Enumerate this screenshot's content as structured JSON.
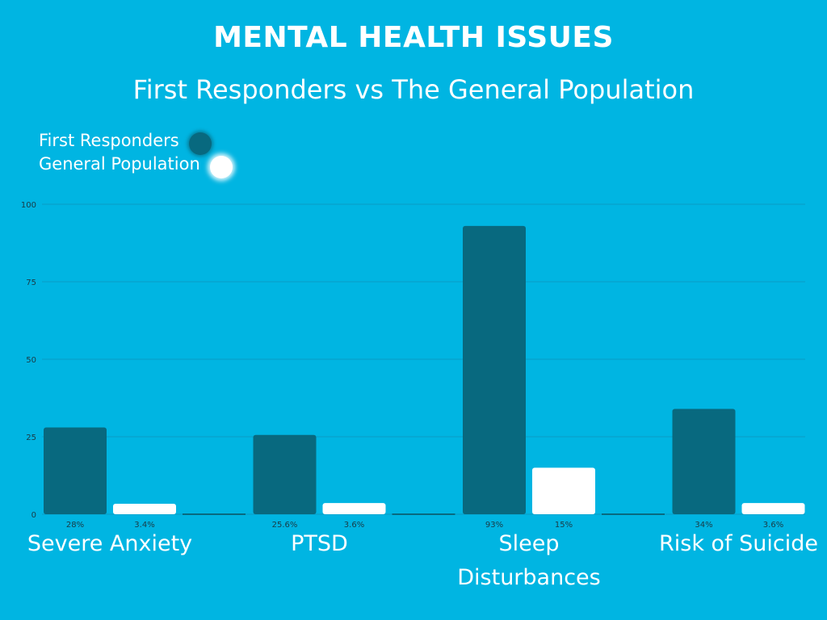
{
  "title": "MENTAL HEALTH ISSUES",
  "subtitle": "First Responders vs The General Population",
  "colors": {
    "background": "#00b5e2",
    "first_responders": "#08697f",
    "general_population": "#ffffff",
    "gridline": "#0a9cc4",
    "axis_text": "#1a3a45",
    "text": "#ffffff"
  },
  "legend": {
    "items": [
      {
        "label": "First Responders",
        "color": "#08697f"
      },
      {
        "label": "General Population",
        "color": "#ffffff"
      }
    ]
  },
  "chart_data": {
    "type": "bar",
    "title": "MENTAL HEALTH ISSUES",
    "subtitle": "First Responders vs The General Population",
    "categories": [
      "Severe Anxiety",
      "PTSD",
      "Sleep Disturbances",
      "Risk of Suicide"
    ],
    "category_lines": [
      [
        "Severe Anxiety"
      ],
      [
        "PTSD"
      ],
      [
        "Sleep",
        "Disturbances"
      ],
      [
        "Risk of Suicide"
      ]
    ],
    "series": [
      {
        "name": "First Responders",
        "values": [
          28,
          25.6,
          93,
          34
        ],
        "labels": [
          "28%",
          "25.6%",
          "93%",
          "34%"
        ]
      },
      {
        "name": "General Population",
        "values": [
          3.4,
          3.6,
          15,
          3.6
        ],
        "labels": [
          "3.4%",
          "3.6%",
          "15%",
          "3.6%"
        ]
      }
    ],
    "ylim": [
      0,
      100
    ],
    "yticks": [
      "0",
      "25",
      "50",
      "75",
      "100"
    ],
    "ytick_values": [
      0,
      25,
      50,
      75,
      100
    ],
    "grid": true,
    "legend_position": "top-left",
    "xlabel": "",
    "ylabel": ""
  }
}
